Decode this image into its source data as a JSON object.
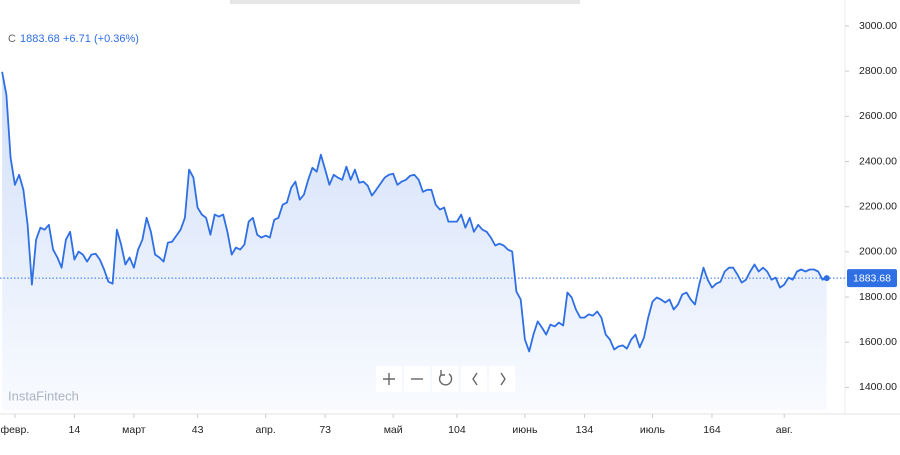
{
  "header": {
    "symbol": "C",
    "change": "+6.71",
    "change_pct": "(+0.36%)",
    "watermark": "InstaFintech"
  },
  "chart_data": {
    "type": "area",
    "color": "#2f6fe4",
    "x": [
      -3,
      -2,
      -1,
      0,
      1,
      2,
      3,
      4,
      5,
      6,
      7,
      8,
      9,
      10,
      11,
      12,
      13,
      14,
      15,
      16,
      17,
      18,
      19,
      20,
      21,
      22,
      23,
      24,
      25,
      26,
      27,
      28,
      29,
      30,
      31,
      32,
      33,
      34,
      35,
      36,
      37,
      38,
      39,
      40,
      41,
      42,
      43,
      44,
      45,
      46,
      47,
      48,
      49,
      50,
      51,
      52,
      53,
      54,
      55,
      56,
      57,
      58,
      59,
      60,
      61,
      62,
      63,
      64,
      65,
      66,
      67,
      68,
      69,
      70,
      71,
      72,
      73,
      74,
      75,
      76,
      77,
      78,
      79,
      80,
      81,
      82,
      83,
      84,
      85,
      86,
      87,
      88,
      89,
      90,
      91,
      92,
      93,
      94,
      95,
      96,
      97,
      98,
      99,
      100,
      101,
      102,
      103,
      104,
      105,
      106,
      107,
      108,
      109,
      110,
      111,
      112,
      113,
      114,
      115,
      116,
      117,
      118,
      119,
      120,
      121,
      122,
      123,
      124,
      125,
      126,
      127,
      128,
      129,
      130,
      131,
      132,
      133,
      134,
      135,
      136,
      137,
      138,
      139,
      140,
      141,
      142,
      143,
      144,
      145,
      146,
      147,
      148,
      149,
      150,
      151,
      152,
      153,
      154,
      155,
      156,
      157,
      158,
      159,
      160,
      161,
      162,
      163,
      164,
      165,
      166,
      167,
      168,
      169,
      170,
      171,
      172,
      173,
      174,
      175,
      176,
      177,
      178,
      179,
      180,
      181,
      182,
      183,
      184,
      185,
      186,
      187,
      188,
      189,
      190,
      191
    ],
    "values": [
      2797,
      2695,
      2417,
      2297,
      2341,
      2275,
      2120,
      1855,
      2054,
      2107,
      2098,
      2120,
      2010,
      1975,
      1930,
      2054,
      2089,
      1966,
      2001,
      1988,
      1957,
      1988,
      1992,
      1966,
      1922,
      1868,
      1859,
      2098,
      2032,
      1944,
      1975,
      1930,
      2010,
      2054,
      2151,
      2089,
      1988,
      1975,
      1957,
      2041,
      2045,
      2072,
      2098,
      2151,
      2364,
      2329,
      2196,
      2165,
      2151,
      2076,
      2165,
      2156,
      2165,
      2089,
      1988,
      2019,
      2010,
      2032,
      2134,
      2151,
      2076,
      2063,
      2072,
      2063,
      2142,
      2151,
      2209,
      2218,
      2284,
      2311,
      2231,
      2253,
      2319,
      2372,
      2355,
      2430,
      2364,
      2297,
      2341,
      2329,
      2319,
      2377,
      2319,
      2364,
      2306,
      2311,
      2293,
      2249,
      2275,
      2302,
      2329,
      2341,
      2346,
      2297,
      2311,
      2319,
      2337,
      2341,
      2319,
      2266,
      2275,
      2275,
      2209,
      2187,
      2196,
      2134,
      2134,
      2134,
      2165,
      2107,
      2151,
      2089,
      2120,
      2098,
      2089,
      2063,
      2028,
      2036,
      2028,
      2010,
      2001,
      1824,
      1789,
      1612,
      1559,
      1634,
      1692,
      1665,
      1634,
      1678,
      1670,
      1687,
      1674,
      1820,
      1798,
      1745,
      1709,
      1709,
      1723,
      1718,
      1736,
      1709,
      1634,
      1612,
      1568,
      1581,
      1586,
      1572,
      1612,
      1634,
      1577,
      1621,
      1709,
      1780,
      1798,
      1789,
      1776,
      1789,
      1745,
      1767,
      1811,
      1820,
      1789,
      1767,
      1855,
      1930,
      1877,
      1842,
      1859,
      1868,
      1913,
      1930,
      1930,
      1899,
      1864,
      1877,
      1913,
      1944,
      1913,
      1930,
      1913,
      1877,
      1886,
      1842,
      1855,
      1886,
      1877,
      1913,
      1922,
      1913,
      1922,
      1922,
      1913,
      1877,
      1883.68
    ],
    "xlim": [
      -3.5,
      195.3
    ],
    "xticks": [
      {
        "value": 0,
        "label": "февр."
      },
      14,
      {
        "value": 28,
        "label": "март"
      },
      43,
      {
        "value": 59,
        "label": "апр."
      },
      73,
      {
        "value": 89,
        "label": "май"
      },
      104,
      {
        "value": 120,
        "label": "июнь"
      },
      134,
      {
        "value": 150,
        "label": "июль"
      },
      164,
      {
        "value": 181,
        "label": "авг."
      }
    ],
    "ylim": [
      1300,
      3115
    ],
    "yticks": [
      {
        "value": 1400,
        "label": "1400.00"
      },
      {
        "value": 1600,
        "label": "1600.00"
      },
      {
        "value": 1800,
        "label": "1800.00"
      },
      {
        "value": 2000,
        "label": "2000.00"
      },
      {
        "value": 2200,
        "label": "2200.00"
      },
      {
        "value": 2400,
        "label": "2400.00"
      },
      {
        "value": 2600,
        "label": "2600.00"
      },
      {
        "value": 2800,
        "label": "2800.00"
      },
      {
        "value": 3000,
        "label": "3000.00"
      }
    ],
    "grid": false
  }
}
